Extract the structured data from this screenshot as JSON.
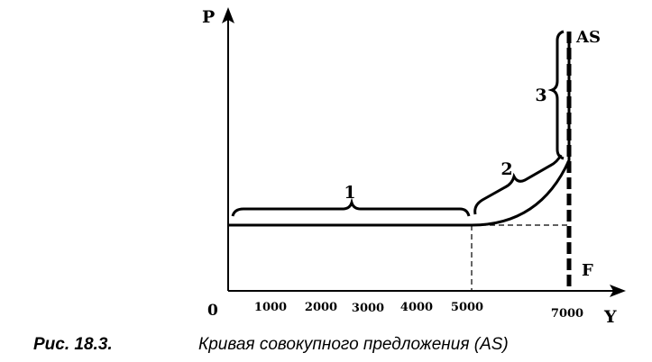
{
  "chart_data": {
    "type": "line",
    "title": "Кривая совокупного предложения (AS)",
    "figure_label": "Рис. 18.3.",
    "ylabel": "P",
    "xlabel": "Y",
    "origin_label": "0",
    "x_ticks": [
      "1000",
      "2000",
      "3000",
      "4000",
      "5000",
      "7000"
    ],
    "x_tick_values": [
      1000,
      2000,
      3000,
      4000,
      5000,
      7000
    ],
    "xlim": [
      0,
      7000
    ],
    "series": [
      {
        "name": "AS",
        "x": [
          0,
          1000,
          2000,
          3000,
          4000,
          5000,
          5500,
          6000,
          6500,
          6800,
          7000,
          7000,
          7000
        ],
        "y": [
          1,
          1,
          1,
          1,
          1,
          1,
          1.06,
          1.2,
          1.45,
          1.7,
          2.0,
          3.5,
          5.0
        ]
      }
    ],
    "segments": [
      {
        "label": "1",
        "x_start": 0,
        "x_end": 5000
      },
      {
        "label": "2",
        "x_start": 5000,
        "x_end": 7000
      },
      {
        "label": "3",
        "x_start": 7000,
        "x_end": 7000
      }
    ],
    "vertical_line_label": "F",
    "grid": false,
    "legend": "none"
  }
}
